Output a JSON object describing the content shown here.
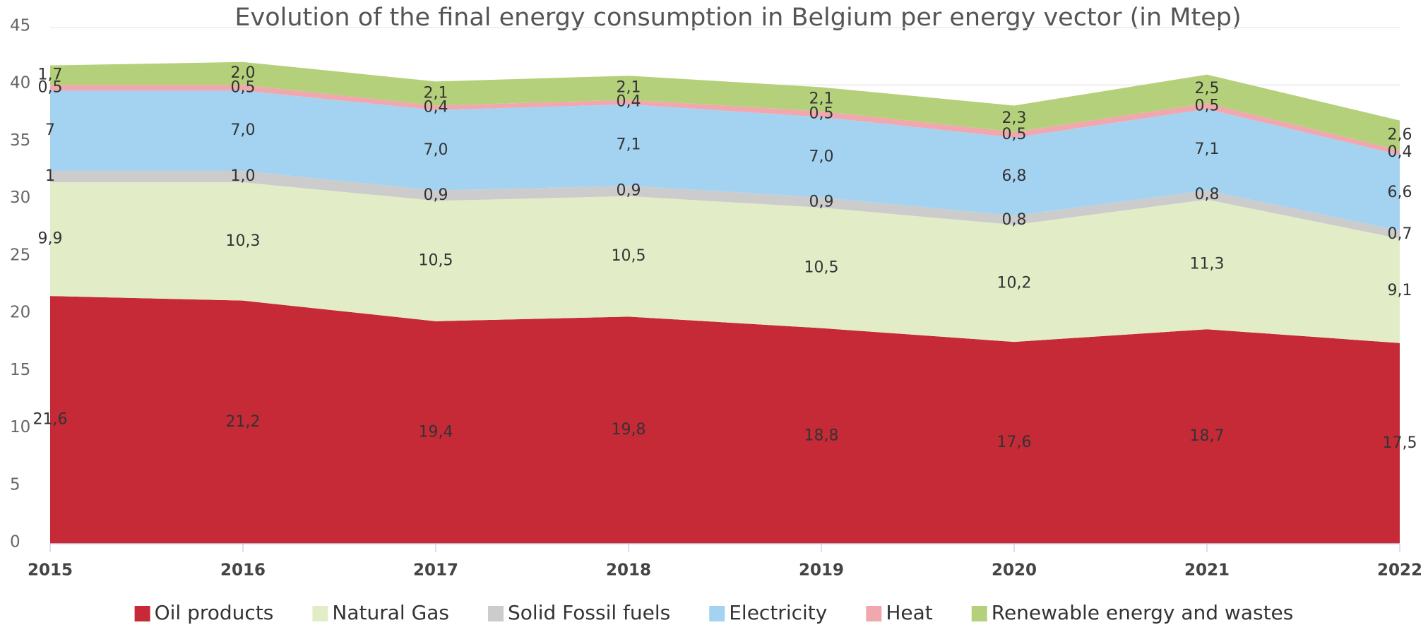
{
  "chart_data": {
    "type": "stacked_area",
    "title": "Evolution of the final energy consumption in Belgium per energy vector (in Mtep)",
    "categories": [
      "2015",
      "2016",
      "2017",
      "2018",
      "2019",
      "2020",
      "2021",
      "2022"
    ],
    "series": [
      {
        "name": "Oil products",
        "color": "#c62a36",
        "values": [
          21.6,
          21.2,
          19.4,
          19.8,
          18.8,
          17.6,
          18.7,
          17.5
        ],
        "value_labels": [
          "21,6",
          "21,2",
          "19,4",
          "19,8",
          "18,8",
          "17,6",
          "18,7",
          "17,5"
        ]
      },
      {
        "name": "Natural Gas",
        "color": "#e2edc8",
        "values": [
          9.9,
          10.3,
          10.5,
          10.5,
          10.5,
          10.2,
          11.3,
          9.1
        ],
        "value_labels": [
          "9,9",
          "10,3",
          "10,5",
          "10,5",
          "10,5",
          "10,2",
          "11,3",
          "9,1"
        ]
      },
      {
        "name": "Solid Fossil fuels",
        "color": "#cccccc",
        "values": [
          1,
          1.0,
          0.9,
          0.9,
          0.9,
          0.8,
          0.8,
          0.7
        ],
        "value_labels": [
          "1",
          "1,0",
          "0,9",
          "0,9",
          "0,9",
          "0,8",
          "0,8",
          "0,7"
        ]
      },
      {
        "name": "Electricity",
        "color": "#a4d3f2",
        "values": [
          7,
          7.0,
          7.0,
          7.1,
          7.0,
          6.8,
          7.1,
          6.6
        ],
        "value_labels": [
          "7",
          "7,0",
          "7,0",
          "7,1",
          "7,0",
          "6,8",
          "7,1",
          "6,6"
        ]
      },
      {
        "name": "Heat",
        "color": "#f0a8ae",
        "values": [
          0.5,
          0.5,
          0.4,
          0.4,
          0.5,
          0.5,
          0.5,
          0.4
        ],
        "value_labels": [
          "0,5",
          "0,5",
          "0,4",
          "0,4",
          "0,5",
          "0,5",
          "0,5",
          "0,4"
        ]
      },
      {
        "name": "Renewable energy and wastes",
        "color": "#b5d07a",
        "values": [
          1.7,
          2.0,
          2.1,
          2.1,
          2.1,
          2.3,
          2.5,
          2.6
        ],
        "value_labels": [
          "1,7",
          "2,0",
          "2,1",
          "2,1",
          "2,1",
          "2,3",
          "2,5",
          "2,6"
        ]
      }
    ],
    "ylim": [
      0,
      45
    ],
    "yticks": [
      0,
      5,
      10,
      15,
      20,
      25,
      30,
      35,
      40,
      45
    ],
    "grid": true,
    "legend": "bottom"
  }
}
